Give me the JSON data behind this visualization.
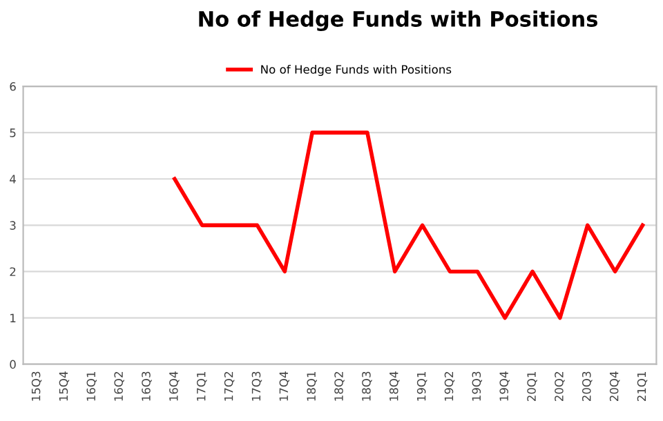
{
  "chart_data": {
    "type": "line",
    "title": "No of Hedge Funds with Positions",
    "categories": [
      "15Q3",
      "15Q4",
      "16Q1",
      "16Q2",
      "16Q3",
      "16Q4",
      "17Q1",
      "17Q2",
      "17Q3",
      "17Q4",
      "18Q1",
      "18Q2",
      "18Q3",
      "18Q4",
      "19Q1",
      "19Q2",
      "19Q3",
      "19Q4",
      "20Q1",
      "20Q2",
      "20Q3",
      "20Q4",
      "21Q1"
    ],
    "series": [
      {
        "name": "No of Hedge Funds with Positions",
        "color": "#ff0000",
        "values": [
          null,
          null,
          null,
          null,
          null,
          4,
          3,
          3,
          3,
          2,
          5,
          5,
          5,
          2,
          3,
          2,
          2,
          1,
          2,
          1,
          3,
          2,
          3
        ]
      }
    ],
    "ylim": [
      0,
      6
    ],
    "yticks": [
      0,
      1,
      2,
      3,
      4,
      5,
      6
    ],
    "grid": "y",
    "legend": "top",
    "marker": "none",
    "line_style": "solid"
  }
}
